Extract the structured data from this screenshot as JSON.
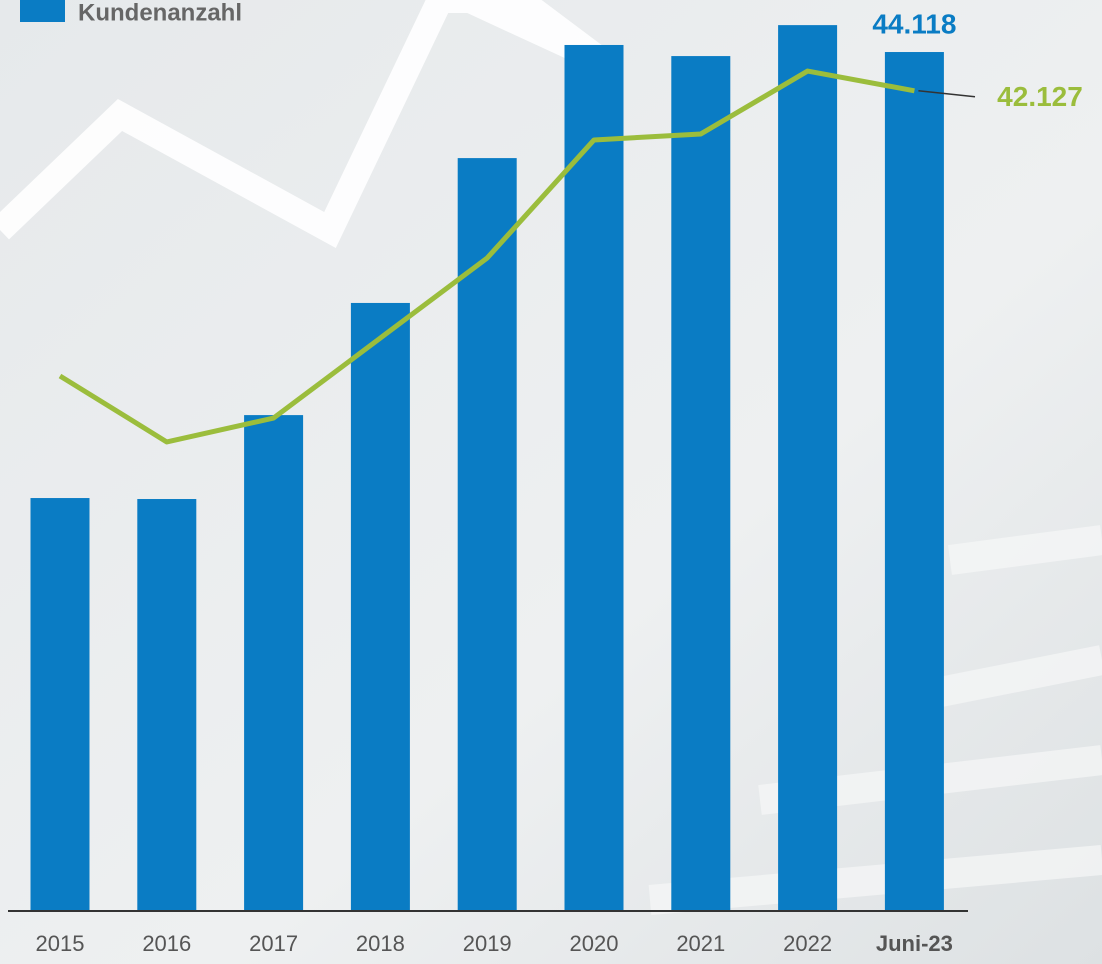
{
  "chart_data": {
    "type": "bar_line",
    "categories": [
      "2015",
      "2016",
      "2017",
      "2018",
      "2019",
      "2020",
      "2021",
      "2022",
      "Juni-23"
    ],
    "series": [
      {
        "name": "Kundenanzahl",
        "type": "bar",
        "color": "#0a7cc4",
        "values": [
          21210,
          21160,
          25470,
          31230,
          38670,
          44480,
          43910,
          45500,
          44118
        ],
        "value_labels": [
          null,
          null,
          null,
          null,
          null,
          null,
          null,
          null,
          "44.118"
        ]
      },
      {
        "type": "line",
        "color": "#9bbd3c",
        "values": [
          27480,
          24090,
          25320,
          29430,
          33540,
          39600,
          39910,
          43140,
          42127
        ],
        "value_labels": [
          null,
          null,
          null,
          null,
          null,
          null,
          null,
          null,
          "42.127"
        ]
      }
    ],
    "ylim": [
      0,
      46790
    ]
  }
}
